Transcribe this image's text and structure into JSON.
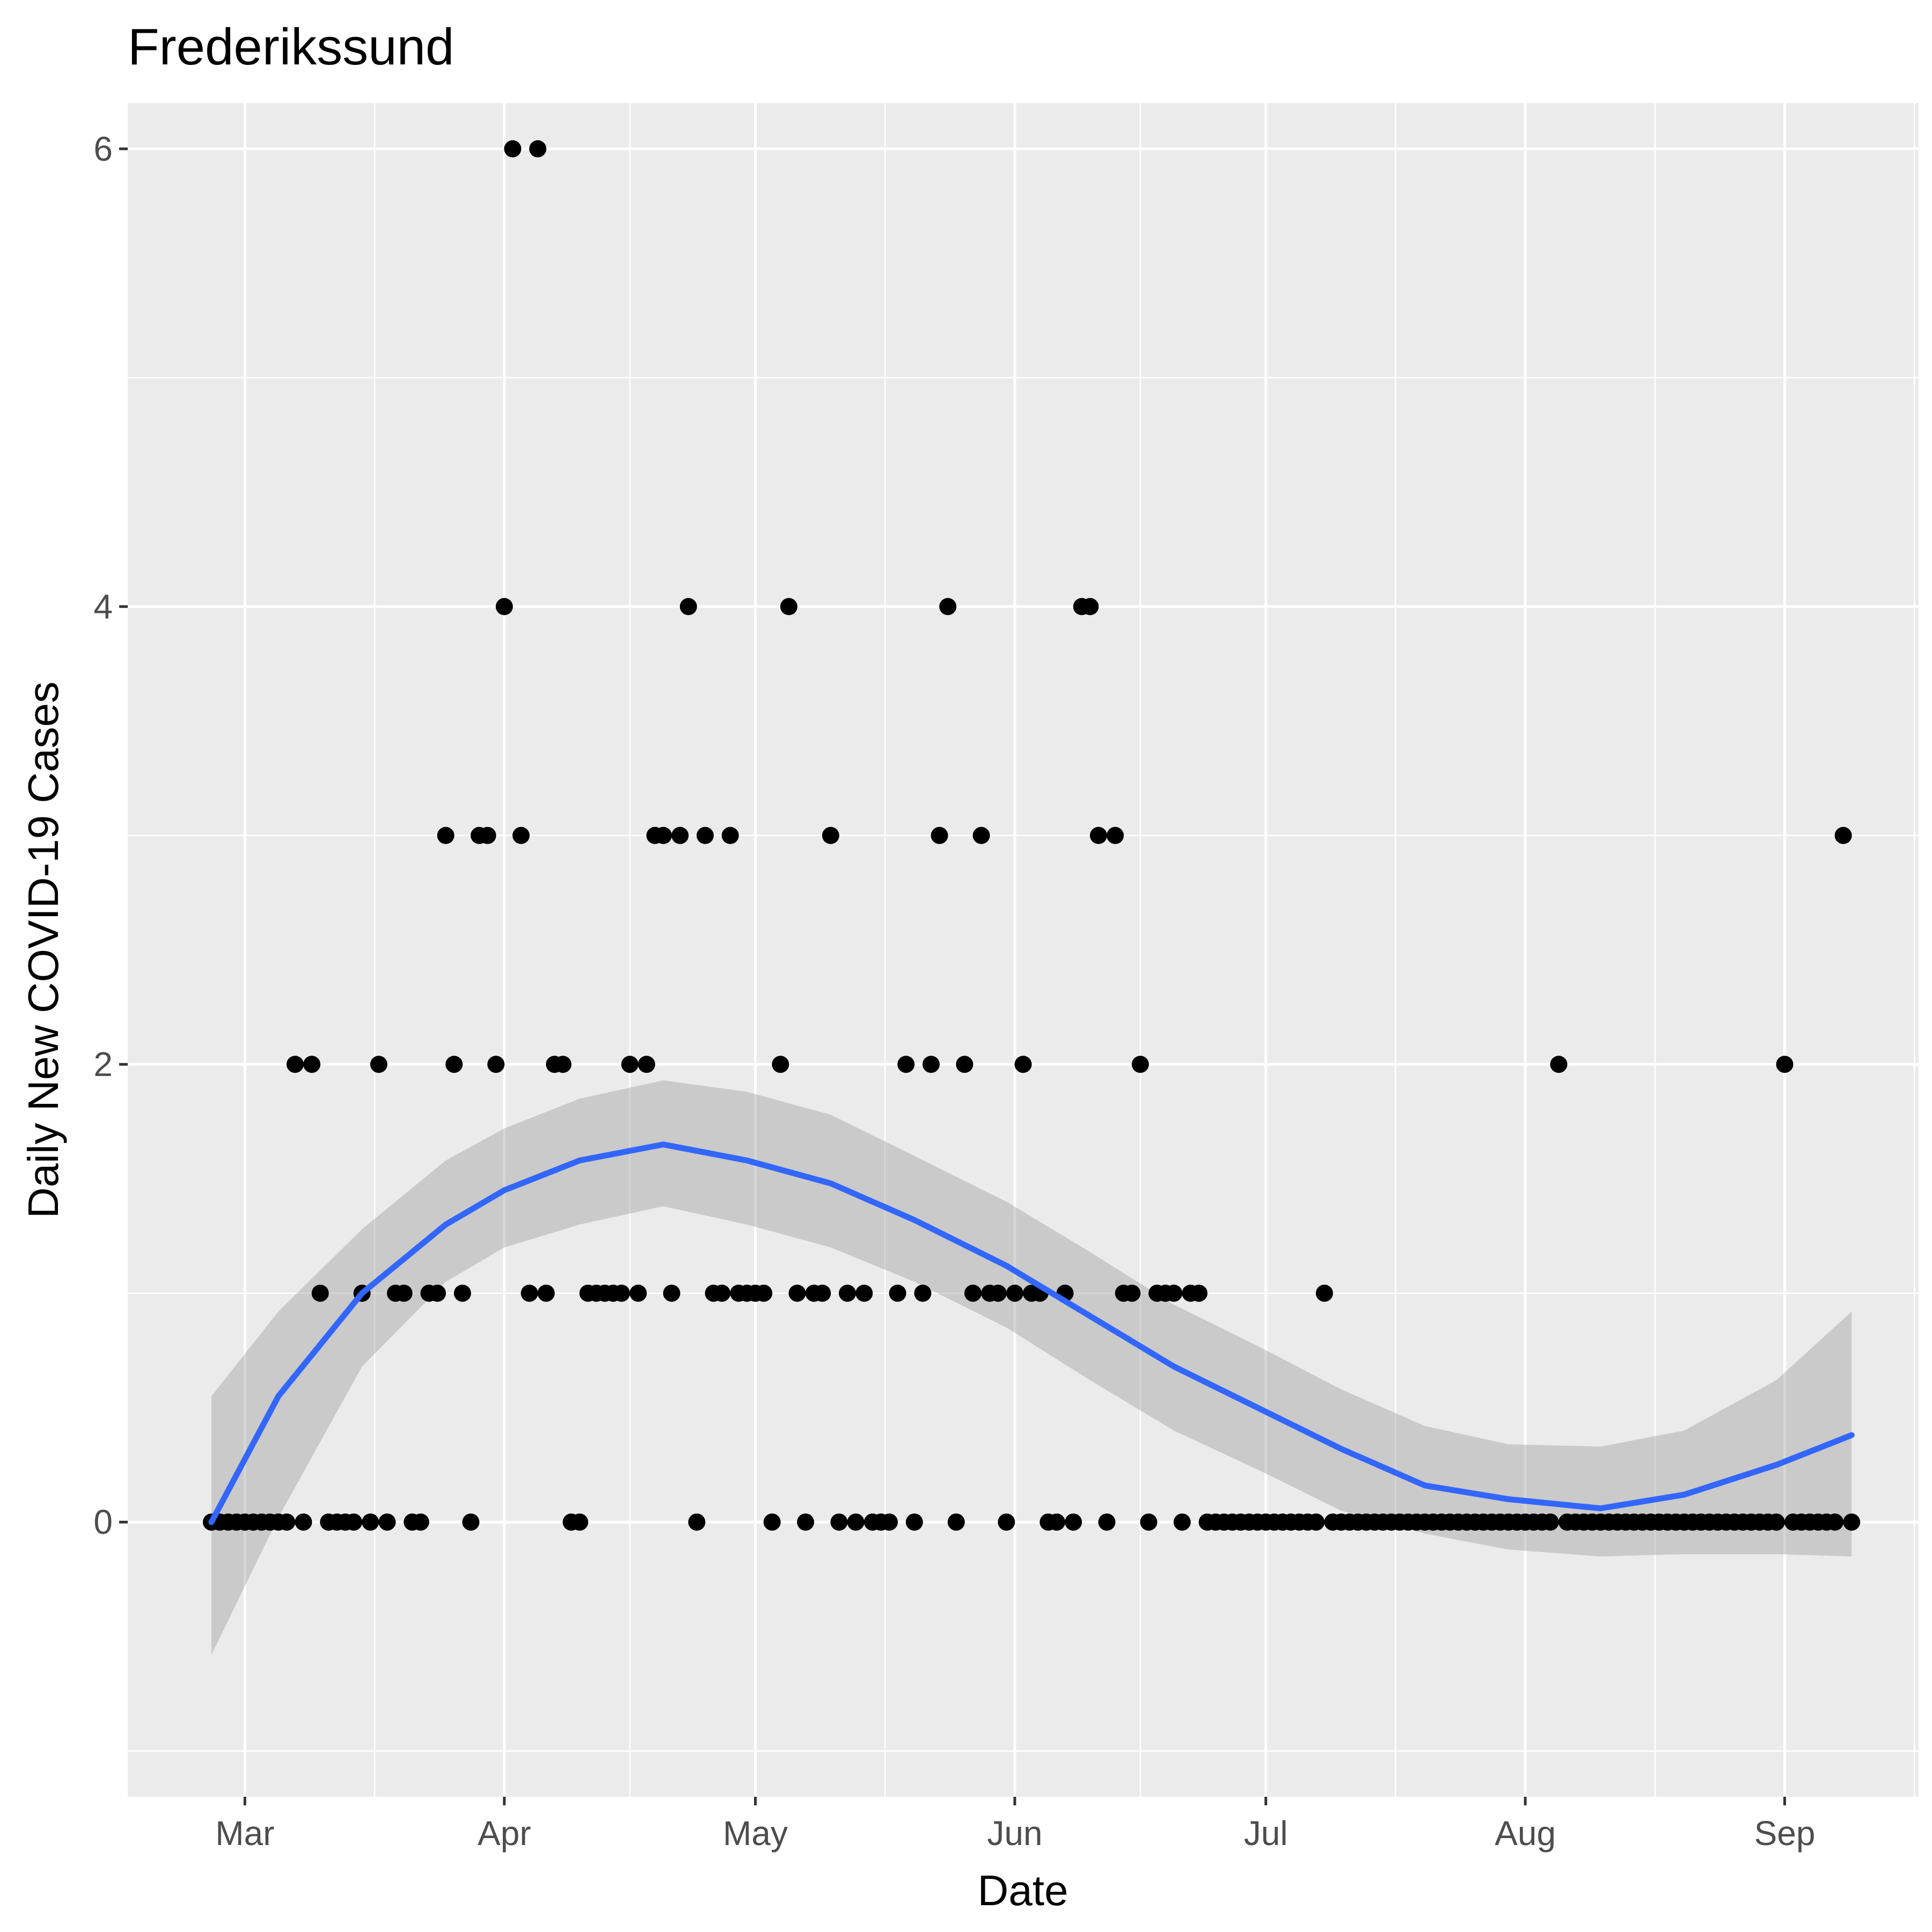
{
  "chart_data": {
    "type": "scatter",
    "title": "Frederikssund",
    "xlabel": "Date",
    "ylabel": "Daily New COVID-19 Cases",
    "x_tick_labels": [
      "Mar",
      "Apr",
      "May",
      "Jun",
      "Jul",
      "Aug",
      "Sep"
    ],
    "x_tick_dates": [
      "2020-03-01",
      "2020-04-01",
      "2020-05-01",
      "2020-06-01",
      "2020-07-01",
      "2020-08-01",
      "2020-09-01"
    ],
    "xlim": [
      "2020-02-16",
      "2020-09-17"
    ],
    "y_ticks": [
      0,
      2,
      4,
      6
    ],
    "ylim": [
      -1.2,
      6.2
    ],
    "grid": true,
    "colors": {
      "panel_background": "#ebebeb",
      "grid": "#ffffff",
      "points": "#000000",
      "smooth_line": "#3366ff",
      "confidence_band": "#999999"
    },
    "series": [
      {
        "values": [
          [
            "2020-02-26",
            0
          ],
          [
            "2020-02-27",
            0
          ],
          [
            "2020-02-28",
            0
          ],
          [
            "2020-02-29",
            0
          ],
          [
            "2020-03-01",
            0
          ],
          [
            "2020-03-02",
            0
          ],
          [
            "2020-03-03",
            0
          ],
          [
            "2020-03-04",
            0
          ],
          [
            "2020-03-05",
            0
          ],
          [
            "2020-03-06",
            0
          ],
          [
            "2020-03-07",
            2
          ],
          [
            "2020-03-08",
            0
          ],
          [
            "2020-03-09",
            2
          ],
          [
            "2020-03-10",
            1
          ],
          [
            "2020-03-11",
            0
          ],
          [
            "2020-03-12",
            0
          ],
          [
            "2020-03-13",
            0
          ],
          [
            "2020-03-14",
            0
          ],
          [
            "2020-03-15",
            1
          ],
          [
            "2020-03-16",
            0
          ],
          [
            "2020-03-17",
            2
          ],
          [
            "2020-03-18",
            0
          ],
          [
            "2020-03-19",
            1
          ],
          [
            "2020-03-20",
            1
          ],
          [
            "2020-03-21",
            0
          ],
          [
            "2020-03-22",
            0
          ],
          [
            "2020-03-23",
            1
          ],
          [
            "2020-03-24",
            1
          ],
          [
            "2020-03-25",
            3
          ],
          [
            "2020-03-26",
            2
          ],
          [
            "2020-03-27",
            1
          ],
          [
            "2020-03-28",
            0
          ],
          [
            "2020-03-29",
            3
          ],
          [
            "2020-03-30",
            3
          ],
          [
            "2020-03-31",
            2
          ],
          [
            "2020-04-01",
            4
          ],
          [
            "2020-04-02",
            6
          ],
          [
            "2020-04-03",
            3
          ],
          [
            "2020-04-04",
            1
          ],
          [
            "2020-04-05",
            6
          ],
          [
            "2020-04-06",
            1
          ],
          [
            "2020-04-07",
            2
          ],
          [
            "2020-04-08",
            2
          ],
          [
            "2020-04-09",
            0
          ],
          [
            "2020-04-10",
            0
          ],
          [
            "2020-04-11",
            1
          ],
          [
            "2020-04-12",
            1
          ],
          [
            "2020-04-13",
            1
          ],
          [
            "2020-04-14",
            1
          ],
          [
            "2020-04-15",
            1
          ],
          [
            "2020-04-16",
            2
          ],
          [
            "2020-04-17",
            1
          ],
          [
            "2020-04-18",
            2
          ],
          [
            "2020-04-19",
            3
          ],
          [
            "2020-04-20",
            3
          ],
          [
            "2020-04-21",
            1
          ],
          [
            "2020-04-22",
            3
          ],
          [
            "2020-04-23",
            4
          ],
          [
            "2020-04-24",
            0
          ],
          [
            "2020-04-25",
            3
          ],
          [
            "2020-04-26",
            1
          ],
          [
            "2020-04-27",
            1
          ],
          [
            "2020-04-28",
            3
          ],
          [
            "2020-04-29",
            1
          ],
          [
            "2020-04-30",
            1
          ],
          [
            "2020-05-01",
            1
          ],
          [
            "2020-05-02",
            1
          ],
          [
            "2020-05-03",
            0
          ],
          [
            "2020-05-04",
            2
          ],
          [
            "2020-05-05",
            4
          ],
          [
            "2020-05-06",
            1
          ],
          [
            "2020-05-07",
            0
          ],
          [
            "2020-05-08",
            1
          ],
          [
            "2020-05-09",
            1
          ],
          [
            "2020-05-10",
            3
          ],
          [
            "2020-05-11",
            0
          ],
          [
            "2020-05-12",
            1
          ],
          [
            "2020-05-13",
            0
          ],
          [
            "2020-05-14",
            1
          ],
          [
            "2020-05-15",
            0
          ],
          [
            "2020-05-16",
            0
          ],
          [
            "2020-05-17",
            0
          ],
          [
            "2020-05-18",
            1
          ],
          [
            "2020-05-19",
            2
          ],
          [
            "2020-05-20",
            0
          ],
          [
            "2020-05-21",
            1
          ],
          [
            "2020-05-22",
            2
          ],
          [
            "2020-05-23",
            3
          ],
          [
            "2020-05-24",
            4
          ],
          [
            "2020-05-25",
            0
          ],
          [
            "2020-05-26",
            2
          ],
          [
            "2020-05-27",
            1
          ],
          [
            "2020-05-28",
            3
          ],
          [
            "2020-05-29",
            1
          ],
          [
            "2020-05-30",
            1
          ],
          [
            "2020-05-31",
            0
          ],
          [
            "2020-06-01",
            1
          ],
          [
            "2020-06-02",
            2
          ],
          [
            "2020-06-03",
            1
          ],
          [
            "2020-06-04",
            1
          ],
          [
            "2020-06-05",
            0
          ],
          [
            "2020-06-06",
            0
          ],
          [
            "2020-06-07",
            1
          ],
          [
            "2020-06-08",
            0
          ],
          [
            "2020-06-09",
            4
          ],
          [
            "2020-06-10",
            4
          ],
          [
            "2020-06-11",
            3
          ],
          [
            "2020-06-12",
            0
          ],
          [
            "2020-06-13",
            3
          ],
          [
            "2020-06-14",
            1
          ],
          [
            "2020-06-15",
            1
          ],
          [
            "2020-06-16",
            2
          ],
          [
            "2020-06-17",
            0
          ],
          [
            "2020-06-18",
            1
          ],
          [
            "2020-06-19",
            1
          ],
          [
            "2020-06-20",
            1
          ],
          [
            "2020-06-21",
            0
          ],
          [
            "2020-06-22",
            1
          ],
          [
            "2020-06-23",
            1
          ],
          [
            "2020-06-24",
            0
          ],
          [
            "2020-06-25",
            0
          ],
          [
            "2020-06-26",
            0
          ],
          [
            "2020-06-27",
            0
          ],
          [
            "2020-06-28",
            0
          ],
          [
            "2020-06-29",
            0
          ],
          [
            "2020-06-30",
            0
          ],
          [
            "2020-07-01",
            0
          ],
          [
            "2020-07-02",
            0
          ],
          [
            "2020-07-03",
            0
          ],
          [
            "2020-07-04",
            0
          ],
          [
            "2020-07-05",
            0
          ],
          [
            "2020-07-06",
            0
          ],
          [
            "2020-07-07",
            0
          ],
          [
            "2020-07-08",
            1
          ],
          [
            "2020-07-09",
            0
          ],
          [
            "2020-07-10",
            0
          ],
          [
            "2020-07-11",
            0
          ],
          [
            "2020-07-12",
            0
          ],
          [
            "2020-07-13",
            0
          ],
          [
            "2020-07-14",
            0
          ],
          [
            "2020-07-15",
            0
          ],
          [
            "2020-07-16",
            0
          ],
          [
            "2020-07-17",
            0
          ],
          [
            "2020-07-18",
            0
          ],
          [
            "2020-07-19",
            0
          ],
          [
            "2020-07-20",
            0
          ],
          [
            "2020-07-21",
            0
          ],
          [
            "2020-07-22",
            0
          ],
          [
            "2020-07-23",
            0
          ],
          [
            "2020-07-24",
            0
          ],
          [
            "2020-07-25",
            0
          ],
          [
            "2020-07-26",
            0
          ],
          [
            "2020-07-27",
            0
          ],
          [
            "2020-07-28",
            0
          ],
          [
            "2020-07-29",
            0
          ],
          [
            "2020-07-30",
            0
          ],
          [
            "2020-07-31",
            0
          ],
          [
            "2020-08-01",
            0
          ],
          [
            "2020-08-02",
            0
          ],
          [
            "2020-08-03",
            0
          ],
          [
            "2020-08-04",
            0
          ],
          [
            "2020-08-05",
            2
          ],
          [
            "2020-08-06",
            0
          ],
          [
            "2020-08-07",
            0
          ],
          [
            "2020-08-08",
            0
          ],
          [
            "2020-08-09",
            0
          ],
          [
            "2020-08-10",
            0
          ],
          [
            "2020-08-11",
            0
          ],
          [
            "2020-08-12",
            0
          ],
          [
            "2020-08-13",
            0
          ],
          [
            "2020-08-14",
            0
          ],
          [
            "2020-08-15",
            0
          ],
          [
            "2020-08-16",
            0
          ],
          [
            "2020-08-17",
            0
          ],
          [
            "2020-08-18",
            0
          ],
          [
            "2020-08-19",
            0
          ],
          [
            "2020-08-20",
            0
          ],
          [
            "2020-08-21",
            0
          ],
          [
            "2020-08-22",
            0
          ],
          [
            "2020-08-23",
            0
          ],
          [
            "2020-08-24",
            0
          ],
          [
            "2020-08-25",
            0
          ],
          [
            "2020-08-26",
            0
          ],
          [
            "2020-08-27",
            0
          ],
          [
            "2020-08-28",
            0
          ],
          [
            "2020-08-29",
            0
          ],
          [
            "2020-08-30",
            0
          ],
          [
            "2020-08-31",
            0
          ],
          [
            "2020-09-01",
            2
          ],
          [
            "2020-09-02",
            0
          ],
          [
            "2020-09-03",
            0
          ],
          [
            "2020-09-04",
            0
          ],
          [
            "2020-09-05",
            0
          ],
          [
            "2020-09-06",
            0
          ],
          [
            "2020-09-07",
            0
          ],
          [
            "2020-09-08",
            3
          ],
          [
            "2020-09-09",
            0
          ]
        ]
      }
    ],
    "smooth": {
      "dates": [
        "2020-02-26",
        "2020-03-05",
        "2020-03-15",
        "2020-03-25",
        "2020-04-01",
        "2020-04-10",
        "2020-04-20",
        "2020-04-30",
        "2020-05-10",
        "2020-05-20",
        "2020-05-31",
        "2020-06-10",
        "2020-06-20",
        "2020-06-30",
        "2020-07-10",
        "2020-07-20",
        "2020-07-30",
        "2020-08-10",
        "2020-08-20",
        "2020-08-31",
        "2020-09-09"
      ],
      "fit": [
        0.0,
        0.55,
        1.0,
        1.3,
        1.45,
        1.58,
        1.65,
        1.58,
        1.48,
        1.32,
        1.12,
        0.9,
        0.68,
        0.5,
        0.32,
        0.16,
        0.1,
        0.06,
        0.12,
        0.25,
        0.38
      ],
      "lower": [
        -0.58,
        0.02,
        0.68,
        1.05,
        1.2,
        1.3,
        1.38,
        1.3,
        1.2,
        1.05,
        0.85,
        0.62,
        0.4,
        0.23,
        0.05,
        -0.05,
        -0.12,
        -0.15,
        -0.14,
        -0.14,
        -0.15
      ],
      "upper": [
        0.55,
        0.92,
        1.28,
        1.58,
        1.72,
        1.85,
        1.93,
        1.88,
        1.78,
        1.6,
        1.4,
        1.18,
        0.95,
        0.77,
        0.58,
        0.42,
        0.34,
        0.33,
        0.4,
        0.62,
        0.92
      ]
    }
  }
}
